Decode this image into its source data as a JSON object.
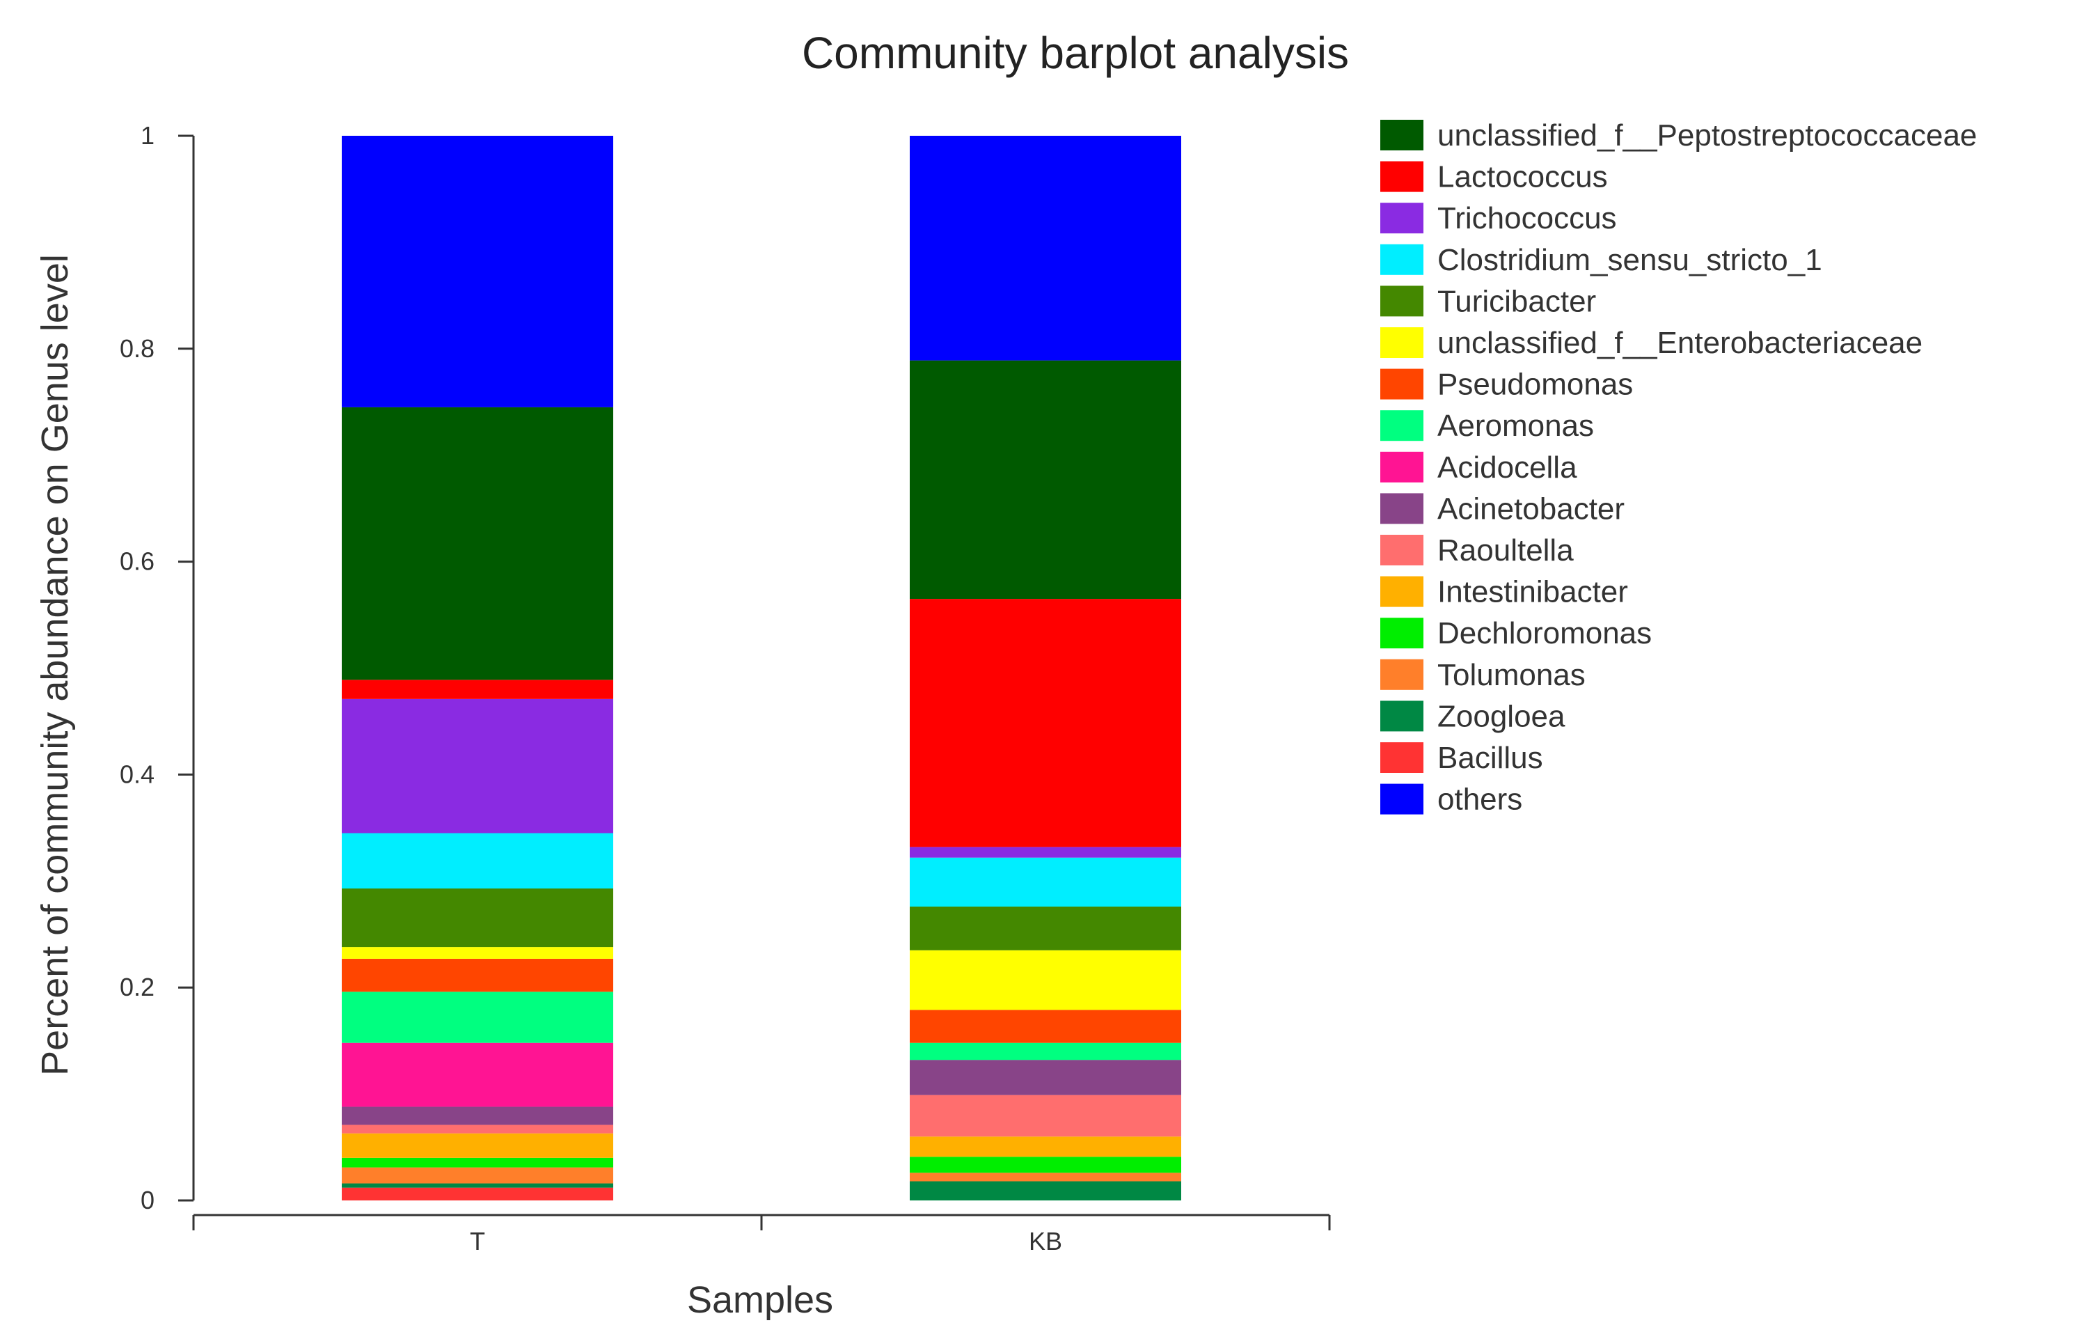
{
  "chart_data": {
    "type": "bar",
    "stacked": true,
    "title": "Community barplot analysis",
    "xlabel": "Samples",
    "ylabel": "Percent of community abundance on Genus level",
    "ylim": [
      0,
      1
    ],
    "yticks": [
      "0",
      "0.2",
      "0.4",
      "0.6",
      "0.8",
      "1"
    ],
    "categories": [
      "T",
      "KB"
    ],
    "legend_position": "right",
    "series": [
      {
        "name": "Bacillus",
        "color": "#ff3333",
        "values": [
          0.012,
          0.0
        ]
      },
      {
        "name": "Zoogloea",
        "color": "#008844",
        "values": [
          0.004,
          0.018
        ]
      },
      {
        "name": "Tolumonas",
        "color": "#ff7f2a",
        "values": [
          0.015,
          0.008
        ]
      },
      {
        "name": "Dechloromonas",
        "color": "#00ee00",
        "values": [
          0.009,
          0.015
        ]
      },
      {
        "name": "Intestinibacter",
        "color": "#ffb000",
        "values": [
          0.023,
          0.019
        ]
      },
      {
        "name": "Raoultella",
        "color": "#ff6e6e",
        "values": [
          0.008,
          0.039
        ]
      },
      {
        "name": "Acinetobacter",
        "color": "#884488",
        "values": [
          0.017,
          0.033
        ]
      },
      {
        "name": "Acidocella",
        "color": "#ff1493",
        "values": [
          0.06,
          0.0
        ]
      },
      {
        "name": "Aeromonas",
        "color": "#00ff80",
        "values": [
          0.048,
          0.016
        ]
      },
      {
        "name": "Pseudomonas",
        "color": "#ff4500",
        "values": [
          0.031,
          0.031
        ]
      },
      {
        "name": "unclassified_f__Enterobacteriaceae",
        "color": "#ffff00",
        "values": [
          0.011,
          0.056
        ]
      },
      {
        "name": "Turicibacter",
        "color": "#448800",
        "values": [
          0.055,
          0.041
        ]
      },
      {
        "name": "Clostridium_sensu_stricto_1",
        "color": "#00eeff",
        "values": [
          0.052,
          0.046
        ]
      },
      {
        "name": "Trichococcus",
        "color": "#8a2be2",
        "values": [
          0.126,
          0.01
        ]
      },
      {
        "name": "Lactococcus",
        "color": "#ff0000",
        "values": [
          0.018,
          0.233
        ]
      },
      {
        "name": "unclassified_f__Peptostreptococcaceae",
        "color": "#005a00",
        "values": [
          0.256,
          0.224
        ]
      },
      {
        "name": "others",
        "color": "#0000ff",
        "values": [
          0.255,
          0.211
        ]
      }
    ],
    "legend_order": [
      "unclassified_f__Peptostreptococcaceae",
      "Lactococcus",
      "Trichococcus",
      "Clostridium_sensu_stricto_1",
      "Turicibacter",
      "unclassified_f__Enterobacteriaceae",
      "Pseudomonas",
      "Aeromonas",
      "Acidocella",
      "Acinetobacter",
      "Raoultella",
      "Intestinibacter",
      "Dechloromonas",
      "Tolumonas",
      "Zoogloea",
      "Bacillus",
      "others"
    ]
  }
}
